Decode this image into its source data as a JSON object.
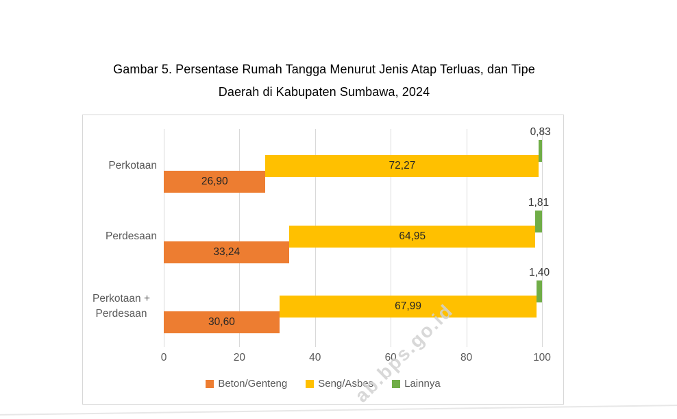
{
  "figure": {
    "title_line1": "Gambar 5. Persentase Rumah Tangga Menurut Jenis Atap Terluas, dan Tipe",
    "title_line2": "Daerah di Kabupaten Sumbawa, 2024"
  },
  "watermark": {
    "text": "ab.bps.go.id"
  },
  "chart_data": {
    "type": "bar",
    "orientation": "horizontal",
    "stacked": true,
    "title": "Gambar 5. Persentase Rumah Tangga Menurut Jenis Atap Terluas, dan Tipe Daerah di Kabupaten Sumbawa, 2024",
    "categories": [
      "Perkotaan",
      "Perdesaan",
      "Perkotaan + Perdesaan"
    ],
    "series": [
      {
        "name": "Beton/Genteng",
        "color": "#ED7D31",
        "values": [
          26.9,
          33.24,
          30.6
        ],
        "value_labels": [
          "26,90",
          "33,24",
          "30,60"
        ],
        "label_placement": "inside-center"
      },
      {
        "name": "Seng/Asbes",
        "color": "#FFC000",
        "values": [
          72.27,
          64.95,
          67.99
        ],
        "value_labels": [
          "72,27",
          "64,95",
          "67,99"
        ],
        "label_placement": "inside-center"
      },
      {
        "name": "Lainnya",
        "color": "#70AD47",
        "values": [
          0.83,
          1.81,
          1.4
        ],
        "value_labels": [
          "0,83",
          "1,81",
          "1,40"
        ],
        "label_placement": "outside-above"
      }
    ],
    "x_axis": {
      "min": 0,
      "max": 100,
      "tick_values": [
        0,
        20,
        40,
        60,
        80,
        100
      ],
      "tick_labels": [
        "0",
        "20",
        "40",
        "60",
        "80",
        "100"
      ]
    },
    "legend_position": "bottom",
    "grid": true,
    "colors": {
      "gridline": "#D9D9D9",
      "axis_text": "#595959",
      "value_label_text": "#262626",
      "watermark_text": "#D2D2D2"
    }
  }
}
